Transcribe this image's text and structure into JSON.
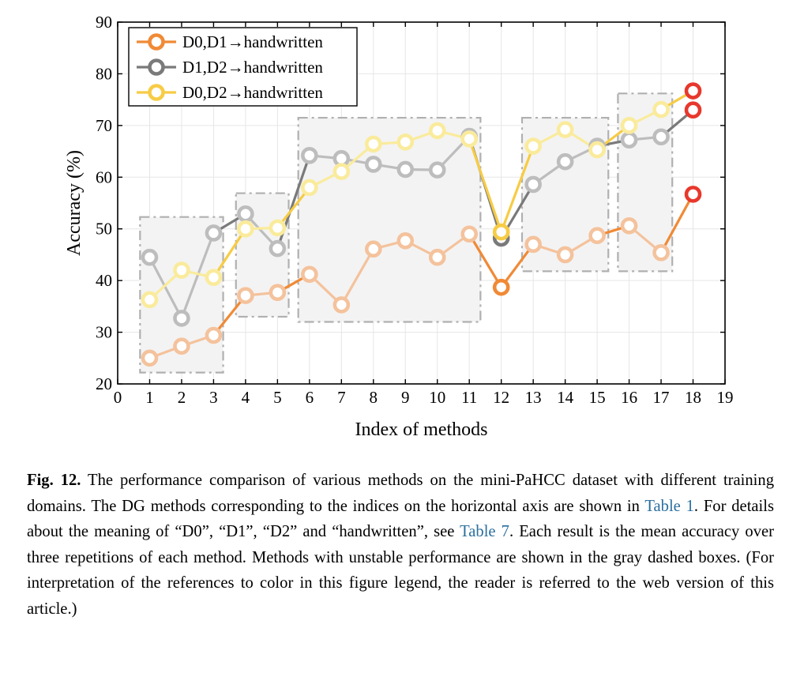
{
  "chart_data": {
    "type": "line",
    "xlabel": "Index of methods",
    "ylabel": "Accuracy (%)",
    "xlim": [
      0,
      19
    ],
    "ylim": [
      20,
      90
    ],
    "xticks": [
      0,
      1,
      2,
      3,
      4,
      5,
      6,
      7,
      8,
      9,
      10,
      11,
      12,
      13,
      14,
      15,
      16,
      17,
      18,
      19
    ],
    "yticks": [
      20,
      30,
      40,
      50,
      60,
      70,
      80,
      90
    ],
    "grid": true,
    "legend_position": "top-left",
    "x": [
      1,
      2,
      3,
      4,
      5,
      6,
      7,
      8,
      9,
      10,
      11,
      12,
      13,
      14,
      15,
      16,
      17,
      18
    ],
    "series": [
      {
        "name": "D0,D1→handwritten",
        "color": "#f08a36",
        "faded_color": "#f4c29c",
        "values": [
          25.0,
          27.3,
          29.4,
          37.1,
          37.7,
          41.2,
          35.3,
          46.1,
          47.7,
          44.5,
          49.0,
          38.7,
          47.0,
          45.0,
          48.7,
          50.6,
          45.4,
          56.7
        ]
      },
      {
        "name": "D1,D2→handwritten",
        "color": "#7a7a7a",
        "faded_color": "#bdbdbd",
        "values": [
          44.5,
          32.7,
          49.2,
          52.9,
          46.2,
          64.2,
          63.6,
          62.5,
          61.5,
          61.4,
          67.9,
          48.2,
          58.6,
          63.0,
          66.0,
          67.2,
          67.8,
          73.0
        ]
      },
      {
        "name": "D0,D2→handwritten",
        "color": "#f7cc45",
        "faded_color": "#faeb9c",
        "values": [
          36.3,
          42.0,
          40.6,
          50.0,
          50.2,
          58.0,
          61.1,
          66.4,
          66.8,
          69.0,
          67.4,
          49.4,
          66.0,
          69.2,
          65.3,
          70.0,
          73.1,
          76.7
        ]
      }
    ],
    "highlight_color": "#e8382c",
    "highlighted_indices": [
      18
    ],
    "unstable_boxes": [
      {
        "x_range": [
          0.7,
          3.3
        ],
        "y_range": [
          22.2,
          52.3
        ]
      },
      {
        "x_range": [
          3.7,
          5.35
        ],
        "y_range": [
          33.0,
          56.9
        ]
      },
      {
        "x_range": [
          5.65,
          11.35
        ],
        "y_range": [
          32.0,
          71.5
        ]
      },
      {
        "x_range": [
          12.65,
          15.35
        ],
        "y_range": [
          41.8,
          71.5
        ]
      },
      {
        "x_range": [
          15.65,
          17.35
        ],
        "y_range": [
          41.8,
          76.2
        ]
      }
    ],
    "box_fill": "#f3f3f3",
    "box_stroke": "#b0b0b0"
  },
  "caption": {
    "label": "Fig. 12.",
    "part1": " The performance comparison of various methods on the mini-PaHCC dataset with different training domains. The DG methods corresponding to the indices on the horizontal axis are shown in ",
    "ref1": "Table 1",
    "part2": ". For details about the meaning of “D0”, “D1”, “D2” and “handwritten”, see ",
    "ref2": "Table 7",
    "part3": ". Each result is the mean accuracy over three repetitions of each method. Methods with unstable performance are shown in the gray dashed boxes. (For interpretation of the references to color in this figure legend, the reader is referred to the web version of this article.)"
  }
}
